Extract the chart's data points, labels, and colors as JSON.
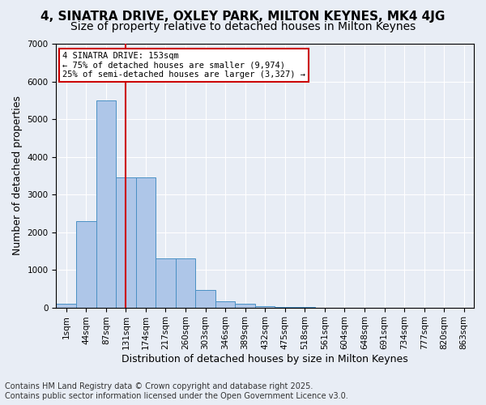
{
  "title1": "4, SINATRA DRIVE, OXLEY PARK, MILTON KEYNES, MK4 4JG",
  "title2": "Size of property relative to detached houses in Milton Keynes",
  "xlabel": "Distribution of detached houses by size in Milton Keynes",
  "ylabel": "Number of detached properties",
  "bar_color": "#aec6e8",
  "bar_edge_color": "#4a90c4",
  "background_color": "#e8edf5",
  "grid_color": "#ffffff",
  "bin_labels": [
    "1sqm",
    "44sqm",
    "87sqm",
    "131sqm",
    "174sqm",
    "217sqm",
    "260sqm",
    "303sqm",
    "346sqm",
    "389sqm",
    "432sqm",
    "475sqm",
    "518sqm",
    "561sqm",
    "604sqm",
    "648sqm",
    "691sqm",
    "734sqm",
    "777sqm",
    "820sqm",
    "863sqm"
  ],
  "bar_values": [
    100,
    2300,
    5500,
    3450,
    3450,
    1300,
    1300,
    470,
    160,
    90,
    40,
    10,
    5,
    2,
    1,
    1,
    0,
    0,
    0,
    0,
    0
  ],
  "red_line_x": 3.0,
  "annotation_line1": "4 SINATRA DRIVE: 153sqm",
  "annotation_line2": "← 75% of detached houses are smaller (9,974)",
  "annotation_line3": "25% of semi-detached houses are larger (3,327) →",
  "annotation_box_color": "#cc0000",
  "ylim": [
    0,
    7000
  ],
  "footer1": "Contains HM Land Registry data © Crown copyright and database right 2025.",
  "footer2": "Contains public sector information licensed under the Open Government Licence v3.0.",
  "title1_fontsize": 11,
  "title2_fontsize": 10,
  "axis_fontsize": 9,
  "tick_fontsize": 7.5,
  "footer_fontsize": 7
}
